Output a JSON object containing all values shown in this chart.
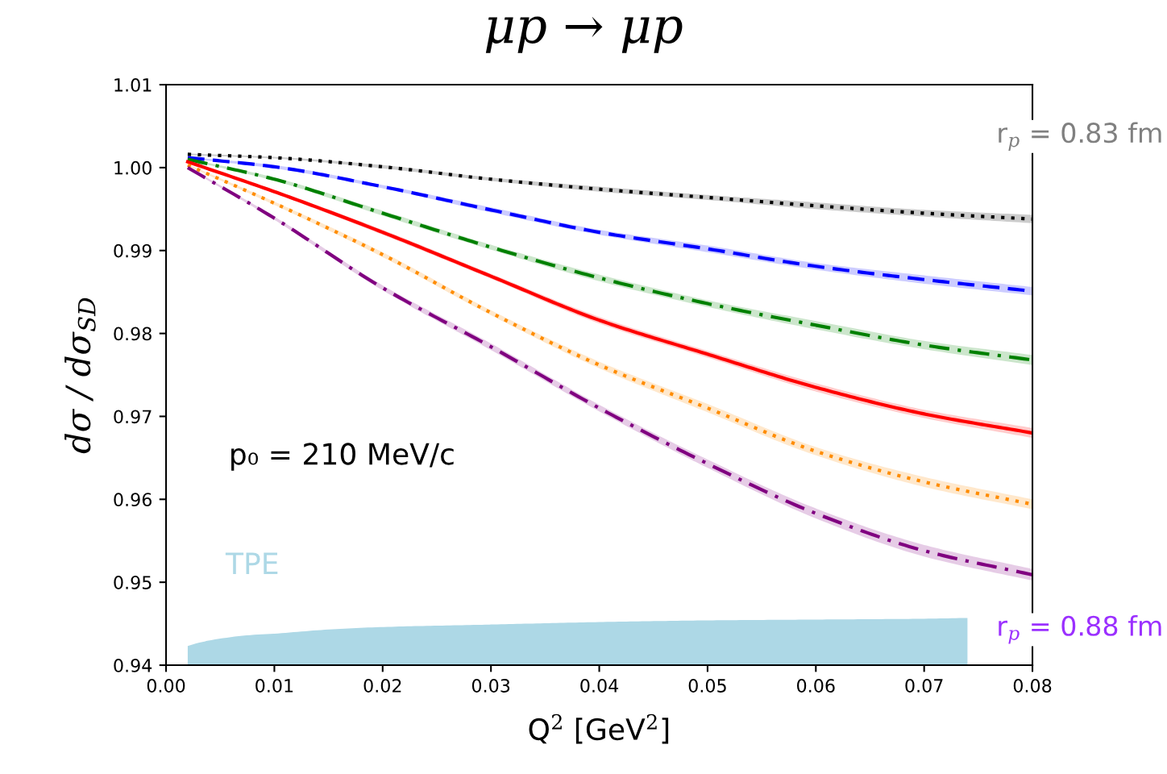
{
  "chart_data": {
    "type": "line",
    "title": "μp → μp",
    "xlabel": "Q$^{2}$ [GeV$^{2}$]",
    "ylabel": "dσ / dσ$_{SD}$",
    "x": [
      0.002,
      0.01,
      0.02,
      0.03,
      0.04,
      0.05,
      0.06,
      0.07,
      0.08
    ],
    "xlim": [
      0.0,
      0.08
    ],
    "ylim": [
      0.94,
      1.01
    ],
    "xticks": [
      {
        "value": 0.0,
        "label": "0.00"
      },
      {
        "value": 0.01,
        "label": "0.01"
      },
      {
        "value": 0.02,
        "label": "0.02"
      },
      {
        "value": 0.03,
        "label": "0.03"
      },
      {
        "value": 0.04,
        "label": "0.04"
      },
      {
        "value": 0.05,
        "label": "0.05"
      },
      {
        "value": 0.06,
        "label": "0.06"
      },
      {
        "value": 0.07,
        "label": "0.07"
      },
      {
        "value": 0.08,
        "label": "0.08"
      }
    ],
    "yticks": [
      {
        "value": 0.94,
        "label": "0.94"
      },
      {
        "value": 0.95,
        "label": "0.95"
      },
      {
        "value": 0.96,
        "label": "0.96"
      },
      {
        "value": 0.97,
        "label": "0.97"
      },
      {
        "value": 0.98,
        "label": "0.98"
      },
      {
        "value": 0.99,
        "label": "0.99"
      },
      {
        "value": 1.0,
        "label": "1.00"
      },
      {
        "value": 1.01,
        "label": "1.01"
      }
    ],
    "grid": false,
    "series": [
      {
        "color": "#000000",
        "line_style": "dotted",
        "values": [
          1.0016,
          1.0012,
          1.0001,
          0.9986,
          0.9974,
          0.9964,
          0.9954,
          0.9945,
          0.9938
        ],
        "lower": [
          1.0015,
          1.0011,
          0.9999,
          0.9984,
          0.9971,
          0.9961,
          0.995,
          0.9941,
          0.9933
        ],
        "upper": [
          1.0017,
          1.0013,
          1.0003,
          0.9988,
          0.9977,
          0.9967,
          0.9958,
          0.9949,
          0.9943
        ]
      },
      {
        "color": "#0000ff",
        "line_style": "dashed",
        "values": [
          1.0012,
          1.0001,
          0.9977,
          0.9949,
          0.9922,
          0.9902,
          0.9881,
          0.9865,
          0.9851
        ],
        "lower": [
          1.0011,
          0.9999,
          0.9975,
          0.9946,
          0.9919,
          0.9898,
          0.9877,
          0.986,
          0.9846
        ],
        "upper": [
          1.0013,
          1.0003,
          0.9979,
          0.9952,
          0.9925,
          0.9906,
          0.9885,
          0.987,
          0.9856
        ]
      },
      {
        "color": "#008000",
        "line_style": "dashdot",
        "values": [
          1.001,
          0.9986,
          0.9945,
          0.9904,
          0.9867,
          0.9836,
          0.981,
          0.9786,
          0.9768
        ],
        "lower": [
          1.0009,
          0.9984,
          0.9942,
          0.9901,
          0.9863,
          0.9832,
          0.9805,
          0.9781,
          0.9762
        ],
        "upper": [
          1.0011,
          0.9988,
          0.9948,
          0.9907,
          0.9871,
          0.984,
          0.9815,
          0.9791,
          0.9774
        ]
      },
      {
        "color": "#ff0000",
        "line_style": "solid",
        "values": [
          1.0007,
          0.9971,
          0.9922,
          0.9869,
          0.9816,
          0.9775,
          0.9735,
          0.9703,
          0.968
        ],
        "lower": [
          1.0006,
          0.9969,
          0.9919,
          0.9866,
          0.9812,
          0.9771,
          0.973,
          0.9698,
          0.9674
        ],
        "upper": [
          1.0008,
          0.9973,
          0.9925,
          0.9872,
          0.982,
          0.9779,
          0.974,
          0.9708,
          0.9686
        ]
      },
      {
        "color": "#ff8c00",
        "line_style": "dotted",
        "values": [
          1.0003,
          0.9957,
          0.9895,
          0.9825,
          0.9762,
          0.971,
          0.9658,
          0.9621,
          0.9594
        ],
        "lower": [
          1.0002,
          0.9955,
          0.9892,
          0.9822,
          0.9758,
          0.9705,
          0.9653,
          0.9615,
          0.9588
        ],
        "upper": [
          1.0004,
          0.9959,
          0.9898,
          0.9828,
          0.9766,
          0.9715,
          0.9663,
          0.9627,
          0.96
        ]
      },
      {
        "color": "#800080",
        "line_style": "dashdot",
        "values": [
          1.0,
          0.9939,
          0.9855,
          0.9784,
          0.971,
          0.9643,
          0.9583,
          0.9538,
          0.9509
        ],
        "lower": [
          0.9999,
          0.9937,
          0.9852,
          0.978,
          0.9706,
          0.9638,
          0.9577,
          0.9531,
          0.9502
        ],
        "upper": [
          1.0001,
          0.9941,
          0.9858,
          0.9788,
          0.9714,
          0.9648,
          0.9589,
          0.9545,
          0.9516
        ]
      },
      {
        "type": "area",
        "name": "TPE",
        "color": "#add8e6",
        "x": [
          0.002,
          0.003,
          0.005,
          0.0075,
          0.01,
          0.015,
          0.02,
          0.03,
          0.04,
          0.05,
          0.06,
          0.07,
          0.074
        ],
        "values": [
          0.9423,
          0.9427,
          0.9432,
          0.9436,
          0.9438,
          0.9443,
          0.9446,
          0.9449,
          0.9452,
          0.9454,
          0.9455,
          0.9456,
          0.9457
        ]
      }
    ],
    "annotations": [
      "p₀ = 210 MeV/c",
      "r$_{p}$ = 0.83 fm",
      "r$_{p}$ = 0.88 fm"
    ]
  }
}
